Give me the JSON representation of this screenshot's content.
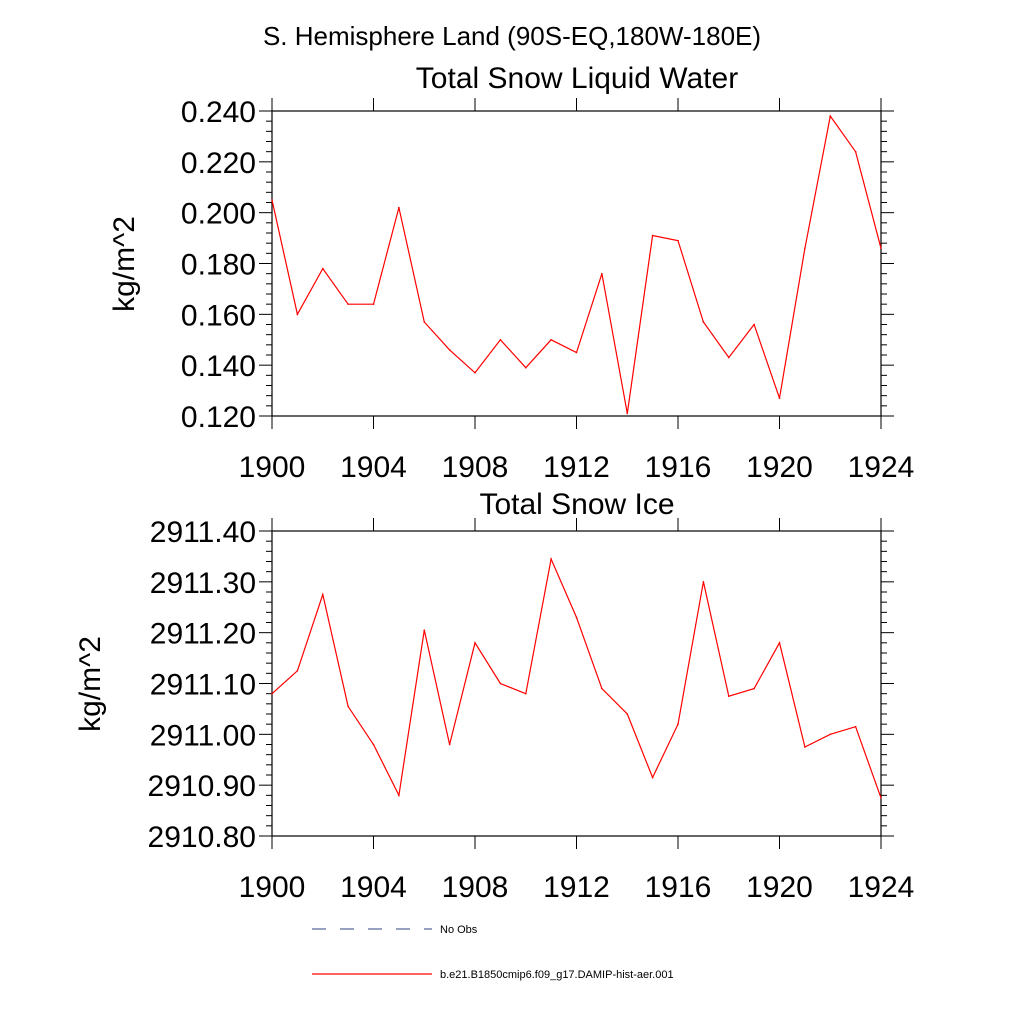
{
  "figure_title": "S. Hemisphere Land (90S-EQ,180W-180E)",
  "colors": {
    "series": "#ff0000",
    "no_obs": "#5a6b9a",
    "axis": "#000000"
  },
  "legend": {
    "no_obs_label": "No Obs",
    "model_label": "b.e21.B1850cmip6.f09_g17.DAMIP-hist-aer.001"
  },
  "chart_data": [
    {
      "type": "line",
      "title": "Total Snow Liquid Water",
      "xlabel": "",
      "ylabel": "kg/m^2",
      "xlim": [
        1900,
        1924
      ],
      "ylim": [
        0.12,
        0.24
      ],
      "x_ticks": [
        1900,
        1904,
        1908,
        1912,
        1916,
        1920,
        1924
      ],
      "x_tick_labels": [
        "1900",
        "1904",
        "1908",
        "1912",
        "1916",
        "1920",
        "1924"
      ],
      "y_ticks": [
        0.12,
        0.14,
        0.16,
        0.18,
        0.2,
        0.22,
        0.24
      ],
      "y_tick_labels": [
        "0.120",
        "0.140",
        "0.160",
        "0.180",
        "0.200",
        "0.220",
        "0.240"
      ],
      "series": [
        {
          "name": "b.e21.B1850cmip6.f09_g17.DAMIP-hist-aer.001",
          "x": [
            1900,
            1901,
            1902,
            1903,
            1904,
            1905,
            1906,
            1907,
            1908,
            1909,
            1910,
            1911,
            1912,
            1913,
            1914,
            1915,
            1916,
            1917,
            1918,
            1919,
            1920,
            1921,
            1922,
            1923,
            1924
          ],
          "values": [
            0.205,
            0.16,
            0.178,
            0.164,
            0.164,
            0.202,
            0.157,
            0.146,
            0.137,
            0.15,
            0.139,
            0.15,
            0.145,
            0.176,
            0.121,
            0.191,
            0.189,
            0.157,
            0.143,
            0.156,
            0.127,
            0.186,
            0.238,
            0.224,
            0.186
          ]
        }
      ]
    },
    {
      "type": "line",
      "title": "Total Snow Ice",
      "xlabel": "",
      "ylabel": "kg/m^2",
      "xlim": [
        1900,
        1924
      ],
      "ylim": [
        2910.8,
        2911.4
      ],
      "x_ticks": [
        1900,
        1904,
        1908,
        1912,
        1916,
        1920,
        1924
      ],
      "x_tick_labels": [
        "1900",
        "1904",
        "1908",
        "1912",
        "1916",
        "1920",
        "1924"
      ],
      "y_ticks": [
        2910.8,
        2910.9,
        2911.0,
        2911.1,
        2911.2,
        2911.3,
        2911.4
      ],
      "y_tick_labels": [
        "2910.80",
        "2910.90",
        "2911.00",
        "2911.10",
        "2911.20",
        "2911.30",
        "2911.40"
      ],
      "series": [
        {
          "name": "b.e21.B1850cmip6.f09_g17.DAMIP-hist-aer.001",
          "x": [
            1900,
            1901,
            1902,
            1903,
            1904,
            1905,
            1906,
            1907,
            1908,
            1909,
            1910,
            1911,
            1912,
            1913,
            1914,
            1915,
            1916,
            1917,
            1918,
            1919,
            1920,
            1921,
            1922,
            1923,
            1924
          ],
          "values": [
            2911.08,
            2911.125,
            2911.275,
            2911.055,
            2910.98,
            2910.88,
            2911.205,
            2910.98,
            2911.18,
            2911.1,
            2911.08,
            2911.345,
            2911.23,
            2911.09,
            2911.04,
            2910.915,
            2911.02,
            2911.3,
            2911.075,
            2911.09,
            2911.18,
            2910.975,
            2911.0,
            2911.015,
            2910.875
          ]
        }
      ]
    }
  ]
}
